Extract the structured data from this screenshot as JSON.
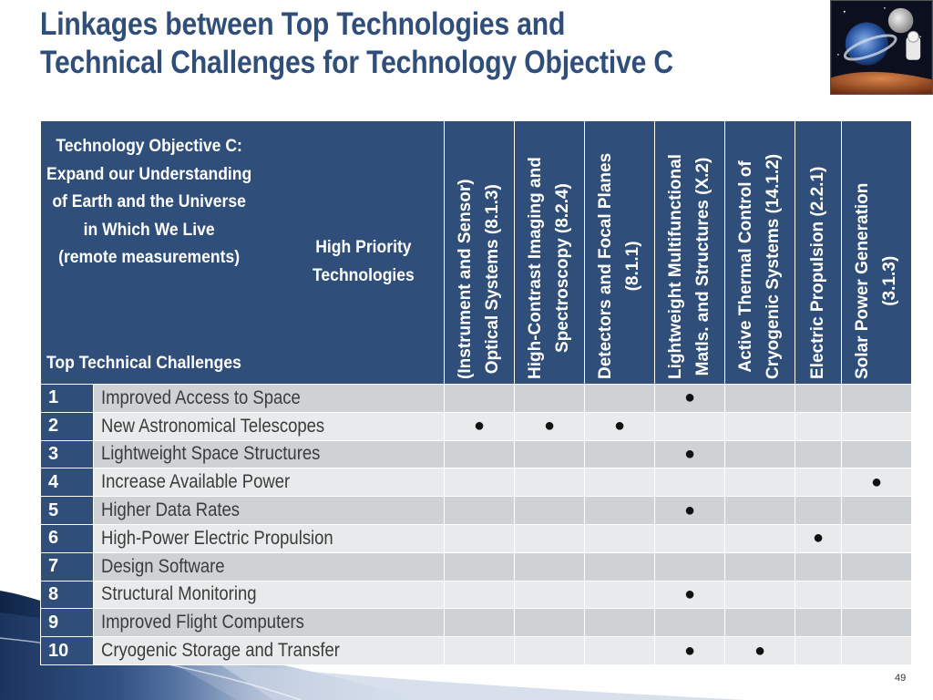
{
  "title": {
    "line1": "Linkages between Top Technologies and",
    "line2": "Technical Challenges for Technology Objective C"
  },
  "header": {
    "objective_lines": [
      "Technology Objective C:",
      "Expand our Understanding",
      "of Earth and the Universe",
      "in Which We Live",
      "(remote measurements)"
    ],
    "high_priority_lines": [
      "High Priority",
      "Technologies"
    ],
    "challenges_label": "Top Technical Challenges"
  },
  "technologies": [
    {
      "lines": [
        "(Instrument and Sensor)",
        "Optical Systems (8.1.3)"
      ]
    },
    {
      "lines": [
        "High-Contrast Imaging and",
        "Spectroscopy (8.2.4)"
      ]
    },
    {
      "lines": [
        "Detectors and Focal Planes",
        "(8.1.1)"
      ]
    },
    {
      "lines": [
        "Lightweight Multifunctional",
        "Matls. and Structures (X.2)"
      ]
    },
    {
      "lines": [
        "Active Thermal Control of",
        "Cryogenic Systems (14.1.2)"
      ]
    },
    {
      "lines": [
        "Electric Propulsion (2.2.1)"
      ]
    },
    {
      "lines": [
        "Solar Power Generation",
        "(3.1.3)"
      ]
    }
  ],
  "mark_symbol": "●",
  "challenges": [
    {
      "num": "1",
      "label": "Improved Access to Space",
      "marks": [
        false,
        false,
        false,
        true,
        false,
        false,
        false
      ]
    },
    {
      "num": "2",
      "label": "New Astronomical Telescopes",
      "marks": [
        true,
        true,
        true,
        false,
        false,
        false,
        false
      ]
    },
    {
      "num": "3",
      "label": "Lightweight Space Structures",
      "marks": [
        false,
        false,
        false,
        true,
        false,
        false,
        false
      ]
    },
    {
      "num": "4",
      "label": "Increase Available Power",
      "marks": [
        false,
        false,
        false,
        false,
        false,
        false,
        true
      ]
    },
    {
      "num": "5",
      "label": "Higher Data Rates",
      "marks": [
        false,
        false,
        false,
        true,
        false,
        false,
        false
      ]
    },
    {
      "num": "6",
      "label": "High-Power Electric Propulsion",
      "marks": [
        false,
        false,
        false,
        false,
        false,
        true,
        false
      ]
    },
    {
      "num": "7",
      "label": "Design Software",
      "marks": [
        false,
        false,
        false,
        false,
        false,
        false,
        false
      ]
    },
    {
      "num": "8",
      "label": "Structural Monitoring",
      "marks": [
        false,
        false,
        false,
        true,
        false,
        false,
        false
      ]
    },
    {
      "num": "9",
      "label": "Improved Flight Computers",
      "marks": [
        false,
        false,
        false,
        false,
        false,
        false,
        false
      ]
    },
    {
      "num": "10",
      "label": "Cryogenic Storage and Transfer",
      "marks": [
        false,
        false,
        false,
        true,
        true,
        false,
        false
      ]
    }
  ],
  "page_number": "49",
  "colors": {
    "title": "#2f4e79",
    "header_bg": "#2f4e79",
    "row_odd": "#cfd2d5",
    "row_even": "#e9eaeb"
  },
  "decoration": {
    "thumbnail_icon": "space-collage-image",
    "swoosh_icon": "blue-swoosh-decoration"
  }
}
